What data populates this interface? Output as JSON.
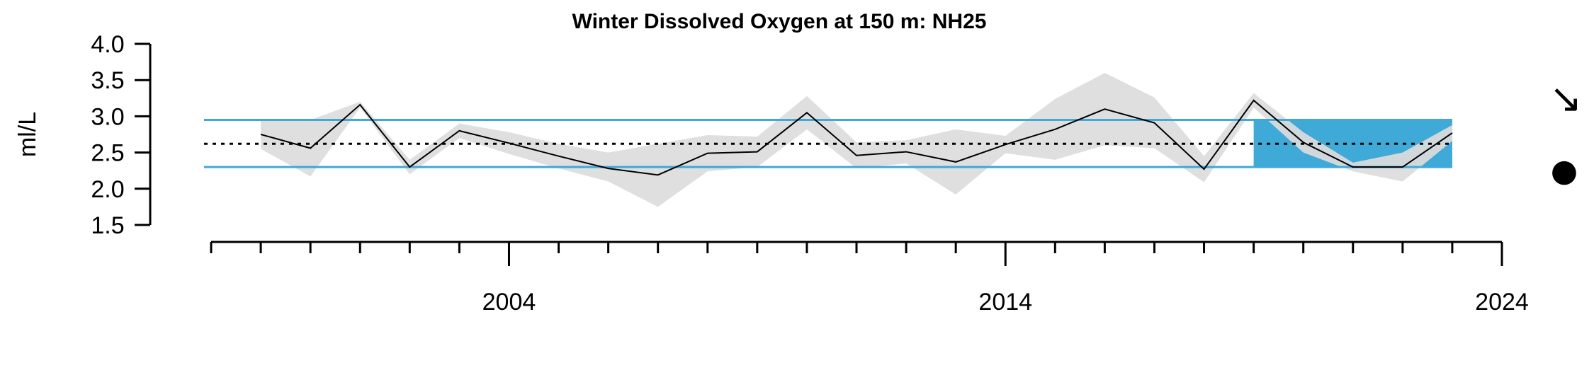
{
  "chart_data": {
    "type": "line",
    "title": "Winter Dissolved Oxygen at 150 m: NH25",
    "ylabel": "ml/L",
    "xlabel": "",
    "ylim": [
      1.5,
      4.0
    ],
    "yticks": [
      "1.5",
      "2.0",
      "2.5",
      "3.0",
      "3.5",
      "4.0"
    ],
    "xlim": [
      1998,
      2024
    ],
    "xticks_major": [
      "2004",
      "2014",
      "2024"
    ],
    "xticks_minor": [
      1998,
      1999,
      2000,
      2001,
      2002,
      2003,
      2004,
      2005,
      2006,
      2007,
      2008,
      2009,
      2010,
      2011,
      2012,
      2013,
      2014,
      2015,
      2016,
      2017,
      2018,
      2019,
      2020,
      2021,
      2022,
      2023,
      2024
    ],
    "mean": 2.62,
    "sd_upper": 2.95,
    "sd_lower": 2.3,
    "recent_window": [
      2019,
      2023
    ],
    "series": [
      {
        "x": [
          1999,
          2000,
          2001,
          2002,
          2003,
          2004,
          2005,
          2006,
          2007,
          2008,
          2009,
          2010,
          2011,
          2012,
          2013,
          2014,
          2015,
          2016,
          2017,
          2018,
          2019,
          2020,
          2021,
          2022,
          2023
        ],
        "y": [
          2.75,
          2.56,
          3.16,
          2.3,
          2.8,
          2.63,
          2.45,
          2.28,
          2.19,
          2.49,
          2.51,
          3.05,
          2.46,
          2.51,
          2.37,
          2.61,
          2.82,
          3.1,
          2.91,
          2.27,
          3.22,
          2.64,
          2.3,
          2.3,
          2.77
        ],
        "upper": [
          2.95,
          2.95,
          3.2,
          2.4,
          2.9,
          2.78,
          2.62,
          2.5,
          2.62,
          2.74,
          2.72,
          3.28,
          2.64,
          2.67,
          2.82,
          2.73,
          3.24,
          3.6,
          3.26,
          2.45,
          3.32,
          2.78,
          2.36,
          2.5,
          2.88
        ],
        "lower": [
          2.55,
          2.17,
          3.12,
          2.2,
          2.7,
          2.48,
          2.28,
          2.1,
          1.75,
          2.24,
          2.3,
          2.82,
          2.28,
          2.35,
          1.92,
          2.49,
          2.4,
          2.6,
          2.56,
          2.09,
          3.12,
          2.5,
          2.24,
          2.1,
          2.66
        ]
      }
    ],
    "trend_symbol": "↘",
    "status_symbol": "●",
    "colors": {
      "sd_lines": "#3fa9d8",
      "recent_box": "#3fa9d8",
      "ribbon": "#dcdcdc",
      "series": "#000000",
      "mean": "#000000"
    }
  }
}
